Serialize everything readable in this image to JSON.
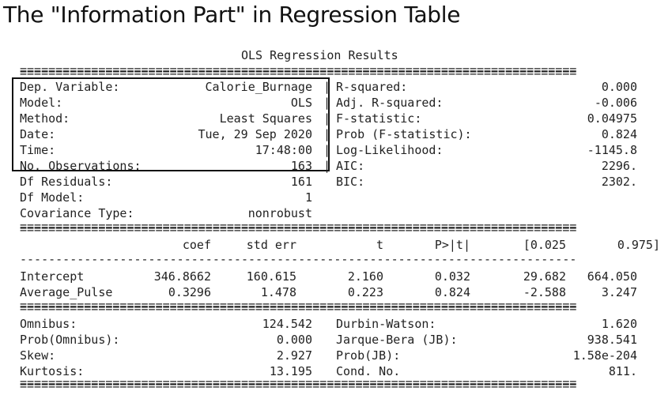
{
  "heading": "The \"Information Part\" in Regression Table",
  "report_title": "OLS Regression Results",
  "rule_double": "==============================================================================",
  "rule_dash": "------------------------------------------------------------------------------",
  "info_left": [
    {
      "label": "Dep. Variable:",
      "value": "Calorie_Burnage"
    },
    {
      "label": "Model:",
      "value": "OLS"
    },
    {
      "label": "Method:",
      "value": "Least Squares"
    },
    {
      "label": "Date:",
      "value": "Tue, 29 Sep 2020"
    },
    {
      "label": "Time:",
      "value": "17:48:00"
    },
    {
      "label": "No. Observations:",
      "value": "163"
    },
    {
      "label": "Df Residuals:",
      "value": "161"
    },
    {
      "label": "Df Model:",
      "value": "1"
    },
    {
      "label": "Covariance Type:",
      "value": "nonrobust"
    }
  ],
  "info_right": [
    {
      "label": "R-squared:",
      "value": "0.000"
    },
    {
      "label": "Adj. R-squared:",
      "value": "-0.006"
    },
    {
      "label": "F-statistic:",
      "value": "0.04975"
    },
    {
      "label": "Prob (F-statistic):",
      "value": "0.824"
    },
    {
      "label": "Log-Likelihood:",
      "value": "-1145.8"
    },
    {
      "label": "AIC:",
      "value": "2296."
    },
    {
      "label": "BIC:",
      "value": "2302."
    }
  ],
  "coef_headers": [
    "coef",
    "std err",
    "t",
    "P>|t|",
    "[0.025",
    "0.975]"
  ],
  "coef_rows": [
    {
      "name": "Intercept",
      "cells": [
        "346.8662",
        "160.615",
        "2.160",
        "0.032",
        "29.682",
        "664.050"
      ]
    },
    {
      "name": "Average_Pulse",
      "cells": [
        "0.3296",
        "1.478",
        "0.223",
        "0.824",
        "-2.588",
        "3.247"
      ]
    }
  ],
  "diag_left": [
    {
      "label": "Omnibus:",
      "value": "124.542"
    },
    {
      "label": "Prob(Omnibus):",
      "value": "0.000"
    },
    {
      "label": "Skew:",
      "value": "2.927"
    },
    {
      "label": "Kurtosis:",
      "value": "13.195"
    }
  ],
  "diag_right": [
    {
      "label": "Durbin-Watson:",
      "value": "1.620"
    },
    {
      "label": "Jarque-Bera (JB):",
      "value": "938.541"
    },
    {
      "label": "Prob(JB):",
      "value": "1.58e-204"
    },
    {
      "label": "Cond. No.",
      "value": "811."
    }
  ]
}
